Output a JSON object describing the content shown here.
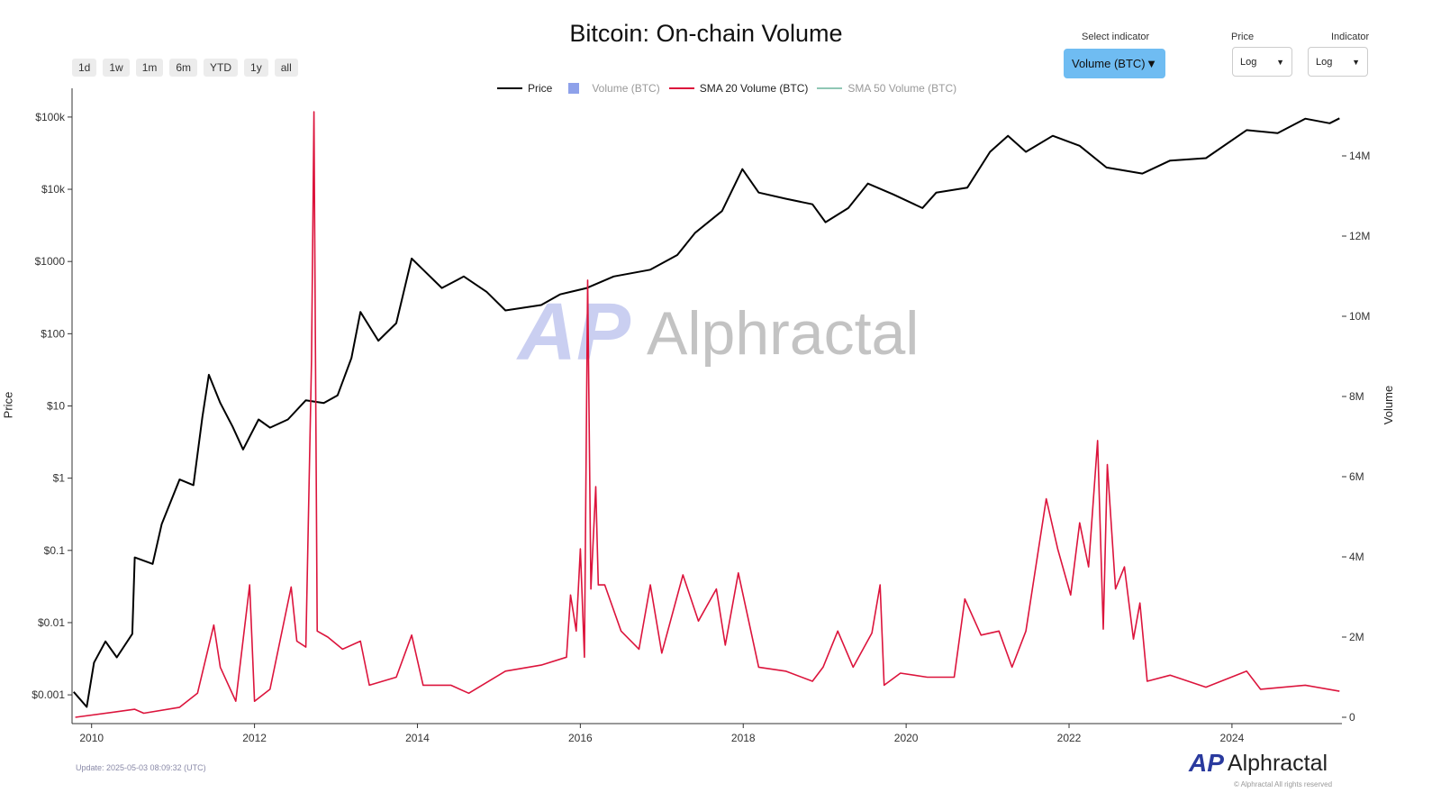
{
  "title": "Bitcoin: On-chain Volume",
  "ranges": [
    "1d",
    "1w",
    "1m",
    "6m",
    "YTD",
    "1y",
    "all"
  ],
  "controls": {
    "indicator_label": "Select indicator",
    "indicator_value": "Volume (BTC)",
    "price_label": "Price",
    "price_value": "Log",
    "ind_scale_label": "Indicator",
    "ind_scale_value": "Log"
  },
  "legend": [
    {
      "label": "Price",
      "color": "#000000"
    },
    {
      "label": "Volume (BTC)",
      "color": "#8ea1ea"
    },
    {
      "label": "SMA 20 Volume (BTC)",
      "color": "#dc143c"
    },
    {
      "label": "SMA 50 Volume (BTC)",
      "color": "#8fc7b5"
    }
  ],
  "update": "Update: 2025-05-03 08:09:32 (UTC)",
  "copyright": "© Alphractal All rights reserved",
  "brand": "Alphractal",
  "brand_mark": "AP",
  "chart_data": {
    "type": "line",
    "title": "Bitcoin: On-chain Volume",
    "xlabel": "",
    "ylabel": "Price",
    "y2label": "Volume",
    "xlim": [
      2009.76,
      2025.35
    ],
    "x_ticks": [
      "2010",
      "2012",
      "2014",
      "2016",
      "2018",
      "2020",
      "2022",
      "2024"
    ],
    "y_ticks": [
      "$0.001",
      "$0.01",
      "$0.1",
      "$1",
      "$10",
      "$100",
      "$1000",
      "$10k",
      "$100k"
    ],
    "y2_ticks": [
      "0",
      "2M",
      "4M",
      "6M",
      "8M",
      "10M",
      "12M",
      "14M"
    ],
    "ylim": [
      0.0004,
      250000
    ],
    "y2lim": [
      0,
      15.6
    ],
    "yscale": "log",
    "y2unit": "M BTC",
    "series": [
      {
        "name": "Price",
        "axis": "left",
        "color": "#000000",
        "points": [
          [
            2009.78,
            0.0011
          ],
          [
            2009.94,
            0.00068
          ],
          [
            2010.03,
            0.0028
          ],
          [
            2010.17,
            0.0055
          ],
          [
            2010.31,
            0.0033
          ],
          [
            2010.5,
            0.007
          ],
          [
            2010.53,
            0.08
          ],
          [
            2010.75,
            0.065
          ],
          [
            2010.86,
            0.23
          ],
          [
            2011.08,
            0.96
          ],
          [
            2011.25,
            0.8
          ],
          [
            2011.36,
            7
          ],
          [
            2011.44,
            27
          ],
          [
            2011.58,
            11
          ],
          [
            2011.73,
            5.2
          ],
          [
            2011.86,
            2.5
          ],
          [
            2012.05,
            6.5
          ],
          [
            2012.19,
            5
          ],
          [
            2012.41,
            6.5
          ],
          [
            2012.63,
            12
          ],
          [
            2012.85,
            11
          ],
          [
            2013.02,
            14
          ],
          [
            2013.19,
            46
          ],
          [
            2013.3,
            200
          ],
          [
            2013.52,
            80
          ],
          [
            2013.74,
            140
          ],
          [
            2013.93,
            1100
          ],
          [
            2014.07,
            770
          ],
          [
            2014.3,
            430
          ],
          [
            2014.57,
            620
          ],
          [
            2014.85,
            380
          ],
          [
            2015.08,
            210
          ],
          [
            2015.52,
            250
          ],
          [
            2015.75,
            350
          ],
          [
            2016.08,
            430
          ],
          [
            2016.41,
            620
          ],
          [
            2016.86,
            770
          ],
          [
            2017.19,
            1230
          ],
          [
            2017.41,
            2500
          ],
          [
            2017.74,
            5000
          ],
          [
            2017.99,
            19000
          ],
          [
            2018.19,
            9000
          ],
          [
            2018.52,
            7400
          ],
          [
            2018.85,
            6200
          ],
          [
            2019.01,
            3500
          ],
          [
            2019.29,
            5500
          ],
          [
            2019.53,
            12000
          ],
          [
            2019.84,
            8500
          ],
          [
            2020.2,
            5500
          ],
          [
            2020.37,
            9000
          ],
          [
            2020.75,
            10500
          ],
          [
            2021.03,
            33000
          ],
          [
            2021.25,
            55000
          ],
          [
            2021.47,
            33000
          ],
          [
            2021.8,
            55000
          ],
          [
            2022.13,
            40000
          ],
          [
            2022.46,
            20000
          ],
          [
            2022.9,
            16500
          ],
          [
            2023.24,
            25000
          ],
          [
            2023.68,
            27000
          ],
          [
            2024.18,
            66000
          ],
          [
            2024.56,
            60000
          ],
          [
            2024.9,
            95000
          ],
          [
            2025.2,
            82000
          ],
          [
            2025.32,
            96000
          ]
        ]
      },
      {
        "name": "SMA 20 Volume (BTC)",
        "axis": "right",
        "color": "#dc143c",
        "points": [
          [
            2009.8,
            0
          ],
          [
            2010.53,
            0.2
          ],
          [
            2010.64,
            0.1
          ],
          [
            2011.08,
            0.25
          ],
          [
            2011.3,
            0.6
          ],
          [
            2011.5,
            2.3
          ],
          [
            2011.58,
            1.25
          ],
          [
            2011.77,
            0.4
          ],
          [
            2011.94,
            3.3
          ],
          [
            2012.0,
            0.4
          ],
          [
            2012.19,
            0.7
          ],
          [
            2012.45,
            3.25
          ],
          [
            2012.52,
            1.9
          ],
          [
            2012.63,
            1.75
          ],
          [
            2012.7,
            8.9
          ],
          [
            2012.73,
            15.1
          ],
          [
            2012.77,
            2.15
          ],
          [
            2012.9,
            2.0
          ],
          [
            2013.08,
            1.7
          ],
          [
            2013.3,
            1.9
          ],
          [
            2013.41,
            0.8
          ],
          [
            2013.74,
            1.0
          ],
          [
            2013.93,
            2.05
          ],
          [
            2014.07,
            0.8
          ],
          [
            2014.41,
            0.8
          ],
          [
            2014.63,
            0.6
          ],
          [
            2015.08,
            1.15
          ],
          [
            2015.52,
            1.3
          ],
          [
            2015.83,
            1.5
          ],
          [
            2015.88,
            3.05
          ],
          [
            2015.95,
            2.15
          ],
          [
            2016.0,
            4.2
          ],
          [
            2016.05,
            1.5
          ],
          [
            2016.09,
            10.9
          ],
          [
            2016.13,
            3.2
          ],
          [
            2016.19,
            5.75
          ],
          [
            2016.22,
            3.3
          ],
          [
            2016.3,
            3.3
          ],
          [
            2016.5,
            2.15
          ],
          [
            2016.72,
            1.7
          ],
          [
            2016.86,
            3.3
          ],
          [
            2017.0,
            1.6
          ],
          [
            2017.26,
            3.55
          ],
          [
            2017.45,
            2.4
          ],
          [
            2017.67,
            3.2
          ],
          [
            2017.78,
            1.8
          ],
          [
            2017.94,
            3.6
          ],
          [
            2018.19,
            1.25
          ],
          [
            2018.52,
            1.15
          ],
          [
            2018.85,
            0.9
          ],
          [
            2018.98,
            1.25
          ],
          [
            2019.16,
            2.15
          ],
          [
            2019.35,
            1.25
          ],
          [
            2019.58,
            2.1
          ],
          [
            2019.68,
            3.3
          ],
          [
            2019.73,
            0.8
          ],
          [
            2019.93,
            1.1
          ],
          [
            2020.26,
            1.0
          ],
          [
            2020.59,
            1.0
          ],
          [
            2020.72,
            2.95
          ],
          [
            2020.92,
            2.05
          ],
          [
            2021.14,
            2.15
          ],
          [
            2021.3,
            1.25
          ],
          [
            2021.47,
            2.15
          ],
          [
            2021.72,
            5.45
          ],
          [
            2021.86,
            4.2
          ],
          [
            2022.02,
            3.05
          ],
          [
            2022.13,
            4.85
          ],
          [
            2022.24,
            3.75
          ],
          [
            2022.35,
            6.9
          ],
          [
            2022.42,
            2.2
          ],
          [
            2022.47,
            6.3
          ],
          [
            2022.57,
            3.2
          ],
          [
            2022.68,
            3.75
          ],
          [
            2022.79,
            1.95
          ],
          [
            2022.87,
            2.85
          ],
          [
            2022.96,
            0.9
          ],
          [
            2023.24,
            1.05
          ],
          [
            2023.68,
            0.75
          ],
          [
            2024.18,
            1.15
          ],
          [
            2024.35,
            0.7
          ],
          [
            2024.9,
            0.8
          ],
          [
            2025.32,
            0.65
          ]
        ]
      }
    ]
  }
}
